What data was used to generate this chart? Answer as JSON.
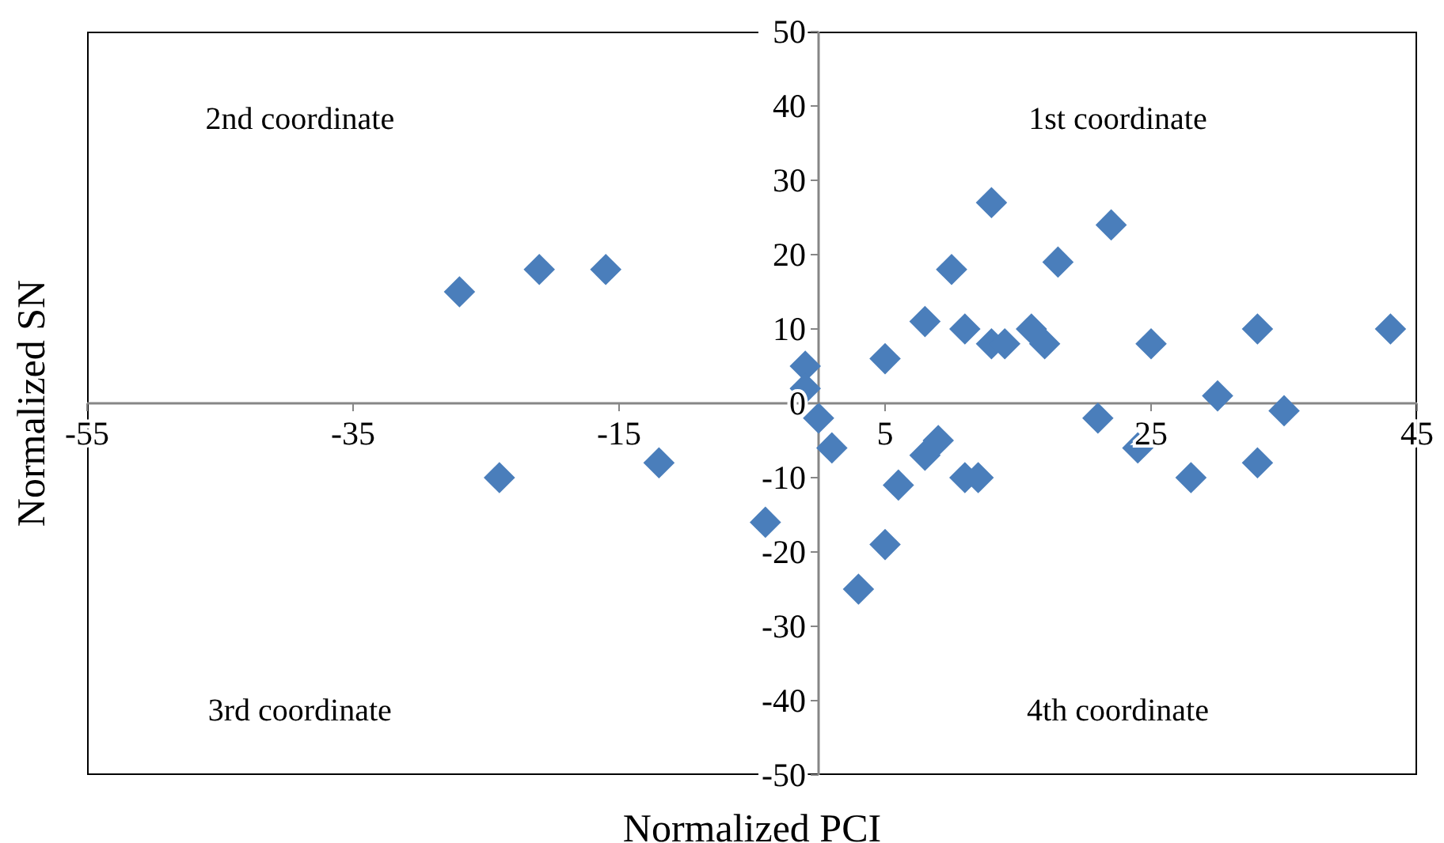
{
  "chart_data": {
    "type": "scatter",
    "xlabel": "Normalized PCI",
    "ylabel": "Normalized SN",
    "x": [
      -27,
      -21,
      -16,
      -24,
      -12,
      -1,
      -1,
      0,
      1,
      -4,
      5,
      8,
      10,
      11,
      13,
      13,
      14,
      16,
      17,
      18,
      22,
      21,
      6,
      8,
      9,
      11,
      12,
      5,
      3,
      25,
      24,
      28,
      30,
      33,
      33,
      35,
      43
    ],
    "series": [
      {
        "color": "#4a7ebb",
        "values": [
          15,
          18,
          18,
          -10,
          -8,
          5,
          2,
          -2,
          -6,
          -16,
          6,
          11,
          18,
          10,
          27,
          8,
          8,
          10,
          8,
          19,
          24,
          -2,
          -11,
          -7,
          -5,
          -10,
          -10,
          -19,
          -25,
          8,
          -6,
          -10,
          1,
          10,
          -8,
          -1,
          10
        ]
      }
    ],
    "xlim": [
      -55,
      45
    ],
    "xticks": [
      -55,
      -35,
      -15,
      5,
      25,
      45
    ],
    "ylim": [
      -50,
      50
    ],
    "yticks": [
      -50,
      -40,
      -30,
      -20,
      -10,
      0,
      10,
      20,
      30,
      40,
      50
    ],
    "marker": "diamond",
    "grid": false,
    "legend": false,
    "annotations": [
      "2nd coordinate",
      "1st coordinate",
      "3rd coordinate",
      "4th coordinate"
    ]
  }
}
